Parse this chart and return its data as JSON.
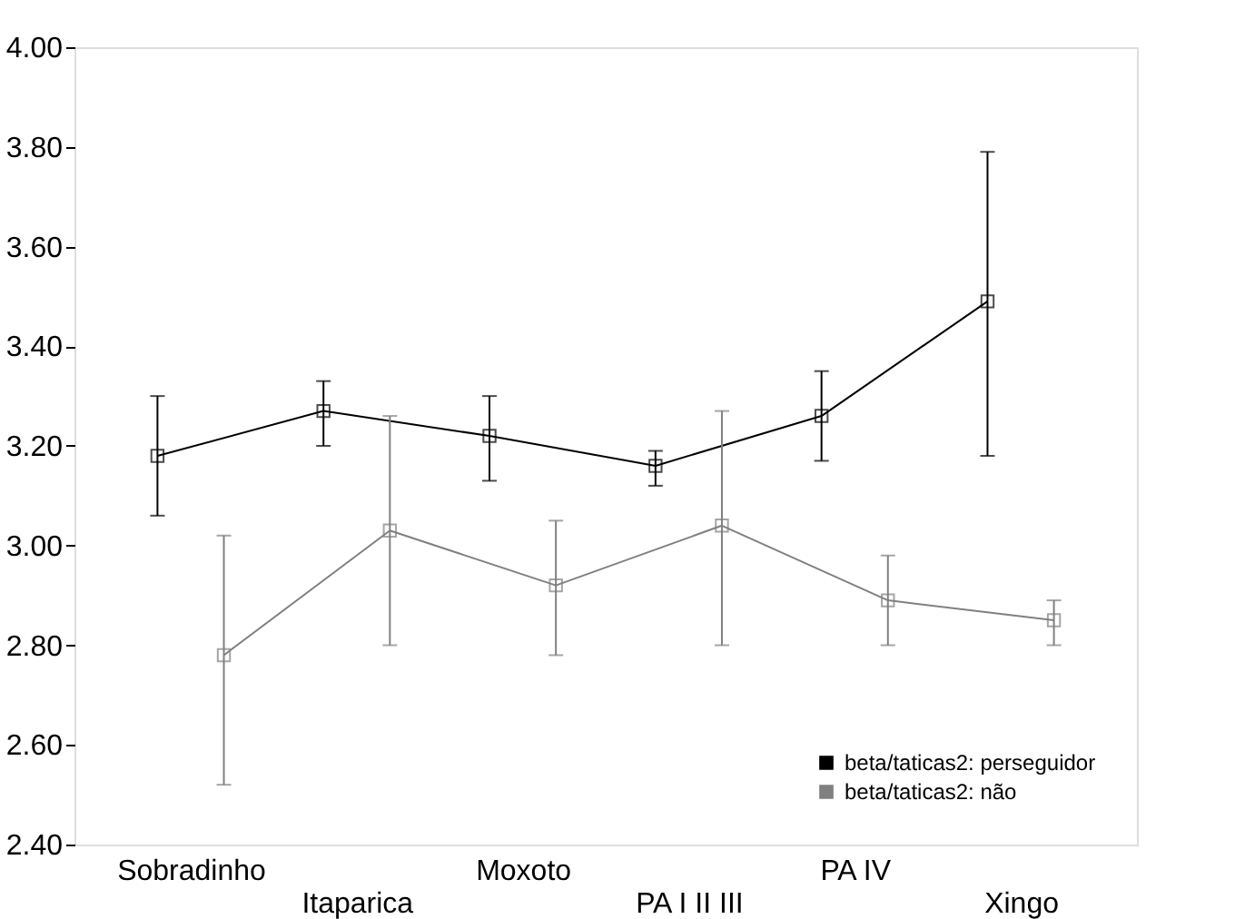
{
  "chart_data": {
    "type": "line",
    "categories": [
      "Sobradinho",
      "Itaparica",
      "Moxoto",
      "PA I II III",
      "PA IV",
      "Xingo"
    ],
    "series": [
      {
        "name": "beta/taticas2: perseguidor",
        "color": "#000000",
        "values": [
          3.18,
          3.27,
          3.22,
          3.16,
          3.26,
          3.49
        ],
        "errors": [
          [
            3.06,
            3.3
          ],
          [
            3.2,
            3.33
          ],
          [
            3.13,
            3.3
          ],
          [
            3.12,
            3.19
          ],
          [
            3.17,
            3.35
          ],
          [
            3.18,
            3.79
          ]
        ]
      },
      {
        "name": "beta/taticas2: não",
        "color": "#808080",
        "values": [
          2.78,
          3.03,
          2.92,
          3.04,
          2.89,
          2.85
        ],
        "errors": [
          [
            2.52,
            3.02
          ],
          [
            2.8,
            3.26
          ],
          [
            2.78,
            3.05
          ],
          [
            2.8,
            3.27
          ],
          [
            2.8,
            2.98
          ],
          [
            2.8,
            2.89
          ]
        ]
      }
    ],
    "ylim": [
      2.4,
      4.0
    ],
    "yticks": [
      {
        "value": 2.4,
        "label": "2.40"
      },
      {
        "value": 2.6,
        "label": "2.60"
      },
      {
        "value": 2.8,
        "label": "2.80"
      },
      {
        "value": 3.0,
        "label": "3.00"
      },
      {
        "value": 3.2,
        "label": "3.20"
      },
      {
        "value": 3.4,
        "label": "3.40"
      },
      {
        "value": 3.6,
        "label": "3.60"
      },
      {
        "value": 3.8,
        "label": "3.80"
      },
      {
        "value": 4.0,
        "label": "4.00"
      }
    ],
    "marker": "square",
    "line_style": "solid",
    "grid": false,
    "legend": "bottom right"
  }
}
